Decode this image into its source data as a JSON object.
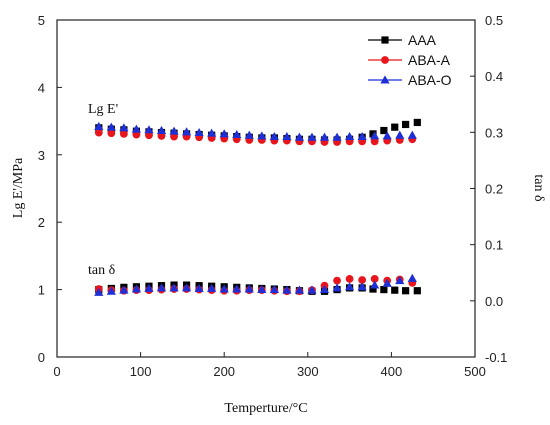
{
  "chart_data": {
    "type": "scatter",
    "xlabel": "Temperture/°C",
    "ylabel_left": "Lg E'/MPa",
    "ylabel_right": "tan δ",
    "xlim": [
      0,
      500
    ],
    "ylim_left": [
      0,
      5
    ],
    "ylim_right": [
      -0.1,
      0.5
    ],
    "xticks": [
      0,
      100,
      200,
      300,
      400,
      500
    ],
    "yticks_left": [
      0,
      1,
      2,
      3,
      4,
      5
    ],
    "yticks_right": [
      -0.1,
      0.0,
      0.1,
      0.2,
      0.3,
      0.4,
      0.5
    ],
    "yticks_right_labels": [
      "-0.1",
      "0.0",
      "0.1",
      "0.2",
      "0.3",
      "0.4",
      "0.5"
    ],
    "grid": false,
    "legend_position": "top-right",
    "annotations": [
      "Lg E'",
      "tan δ"
    ],
    "series": [
      {
        "name": "AAA",
        "color": "#000000",
        "marker": "square",
        "storage_modulus": {
          "x": [
            50,
            65,
            80,
            95,
            110,
            125,
            140,
            155,
            170,
            185,
            200,
            215,
            230,
            245,
            260,
            275,
            290,
            305,
            320,
            335,
            350,
            365,
            378,
            391,
            404,
            417,
            431
          ],
          "y": [
            3.4,
            3.38,
            3.37,
            3.35,
            3.34,
            3.33,
            3.32,
            3.31,
            3.3,
            3.29,
            3.28,
            3.27,
            3.26,
            3.25,
            3.25,
            3.24,
            3.23,
            3.23,
            3.22,
            3.22,
            3.23,
            3.26,
            3.31,
            3.36,
            3.41,
            3.45,
            3.48
          ]
        },
        "tan_delta": {
          "x": [
            50,
            65,
            80,
            95,
            110,
            125,
            140,
            155,
            170,
            185,
            200,
            215,
            230,
            245,
            260,
            275,
            290,
            305,
            320,
            335,
            350,
            365,
            378,
            391,
            404,
            417,
            431
          ],
          "y": [
            0.02,
            0.022,
            0.024,
            0.025,
            0.026,
            0.027,
            0.028,
            0.028,
            0.027,
            0.026,
            0.025,
            0.024,
            0.023,
            0.022,
            0.021,
            0.02,
            0.018,
            0.017,
            0.017,
            0.02,
            0.023,
            0.023,
            0.021,
            0.02,
            0.019,
            0.018,
            0.018
          ]
        }
      },
      {
        "name": "ABA-A",
        "color": "#e8161c",
        "marker": "circle",
        "storage_modulus": {
          "x": [
            50,
            65,
            80,
            95,
            110,
            125,
            140,
            155,
            170,
            185,
            200,
            215,
            230,
            245,
            260,
            275,
            290,
            305,
            320,
            335,
            350,
            365,
            380,
            395,
            410,
            425
          ],
          "y": [
            3.33,
            3.32,
            3.31,
            3.3,
            3.29,
            3.28,
            3.27,
            3.27,
            3.26,
            3.25,
            3.24,
            3.23,
            3.22,
            3.22,
            3.21,
            3.21,
            3.2,
            3.2,
            3.19,
            3.19,
            3.2,
            3.2,
            3.2,
            3.21,
            3.22,
            3.23
          ]
        },
        "tan_delta": {
          "x": [
            50,
            65,
            80,
            95,
            110,
            125,
            140,
            155,
            170,
            185,
            200,
            215,
            230,
            245,
            260,
            275,
            290,
            305,
            320,
            335,
            350,
            365,
            380,
            395,
            410,
            425
          ],
          "y": [
            0.021,
            0.019,
            0.018,
            0.019,
            0.019,
            0.02,
            0.021,
            0.021,
            0.02,
            0.019,
            0.018,
            0.018,
            0.019,
            0.019,
            0.018,
            0.017,
            0.017,
            0.019,
            0.027,
            0.036,
            0.039,
            0.037,
            0.039,
            0.036,
            0.038,
            0.032
          ]
        }
      },
      {
        "name": "ABA-O",
        "color": "#1f2fd6",
        "marker": "triangle",
        "storage_modulus": {
          "x": [
            50,
            65,
            80,
            95,
            110,
            125,
            140,
            155,
            170,
            185,
            200,
            215,
            230,
            245,
            260,
            275,
            290,
            305,
            320,
            335,
            350,
            365,
            380,
            395,
            410,
            425
          ],
          "y": [
            3.42,
            3.41,
            3.4,
            3.38,
            3.37,
            3.36,
            3.35,
            3.34,
            3.33,
            3.32,
            3.31,
            3.3,
            3.29,
            3.28,
            3.27,
            3.27,
            3.26,
            3.26,
            3.26,
            3.26,
            3.27,
            3.27,
            3.28,
            3.28,
            3.29,
            3.29
          ]
        },
        "tan_delta": {
          "x": [
            50,
            65,
            80,
            95,
            110,
            125,
            140,
            155,
            170,
            185,
            200,
            215,
            230,
            245,
            260,
            275,
            290,
            305,
            320,
            335,
            350,
            365,
            380,
            395,
            410,
            425
          ],
          "y": [
            0.015,
            0.017,
            0.019,
            0.021,
            0.022,
            0.023,
            0.023,
            0.023,
            0.022,
            0.022,
            0.021,
            0.021,
            0.021,
            0.02,
            0.02,
            0.019,
            0.019,
            0.019,
            0.02,
            0.023,
            0.025,
            0.025,
            0.028,
            0.031,
            0.036,
            0.04
          ]
        }
      }
    ]
  }
}
